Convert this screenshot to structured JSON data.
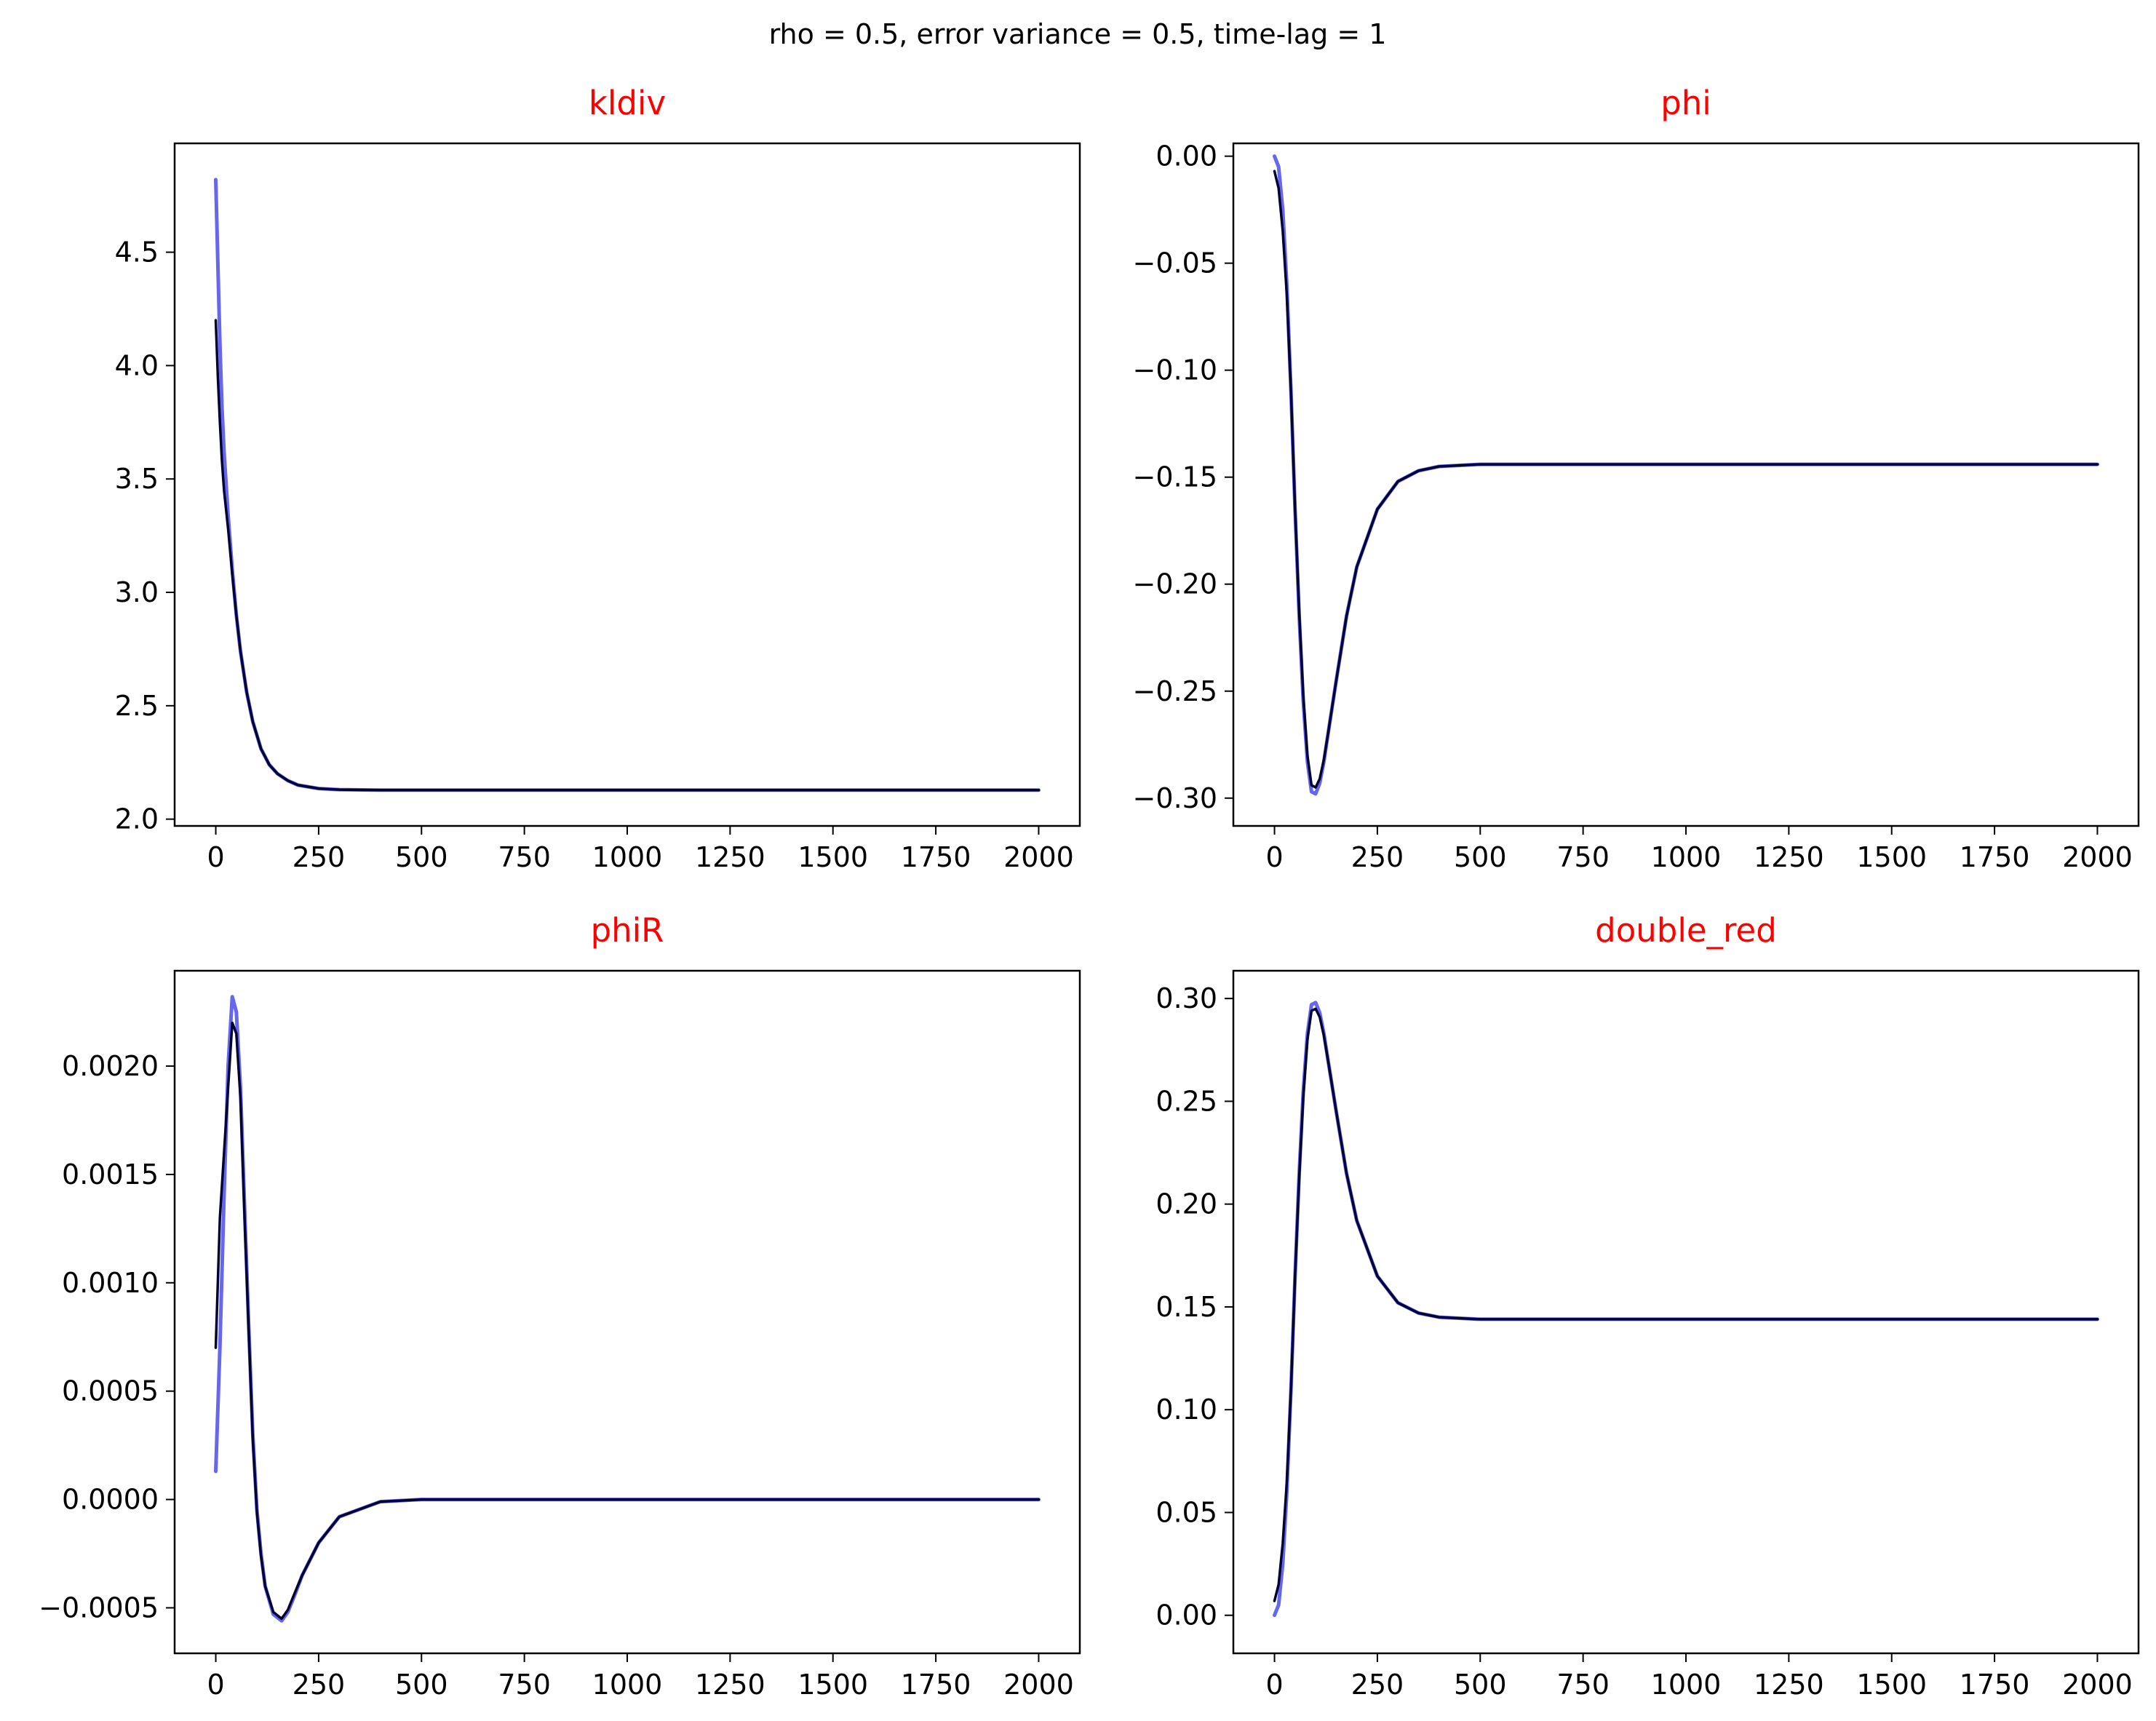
{
  "figure": {
    "suptitle": "rho = 0.5, error variance = 0.5, time-lag = 1",
    "colors": {
      "series_a": "#6666ee",
      "series_b": "#000033",
      "title": "#ff0000",
      "axes": "#000000"
    }
  },
  "chart_data": [
    {
      "type": "line",
      "title": "kldiv",
      "xlim": [
        -100,
        2100
      ],
      "ylim": [
        1.97,
        4.98
      ],
      "xticks": [
        0,
        250,
        500,
        750,
        1000,
        1250,
        1500,
        1750,
        2000
      ],
      "xtick_labels": [
        "0",
        "250",
        "500",
        "750",
        "1000",
        "1250",
        "1500",
        "1750",
        "2000"
      ],
      "yticks": [
        2.0,
        2.5,
        3.0,
        3.5,
        4.0,
        4.5
      ],
      "ytick_labels": [
        "2.0",
        "2.5",
        "3.0",
        "3.5",
        "4.0",
        "4.5"
      ],
      "series": [
        {
          "x": [
            0,
            5,
            10,
            15,
            20,
            30,
            40,
            50,
            60,
            75,
            90,
            110,
            130,
            150,
            175,
            200,
            250,
            300,
            400,
            500,
            750,
            1000,
            1500,
            2000
          ],
          "y": [
            4.82,
            4.45,
            4.1,
            3.82,
            3.62,
            3.34,
            3.1,
            2.9,
            2.74,
            2.56,
            2.43,
            2.31,
            2.24,
            2.2,
            2.17,
            2.15,
            2.135,
            2.13,
            2.128,
            2.128,
            2.128,
            2.128,
            2.128,
            2.128
          ]
        },
        {
          "x": [
            0,
            5,
            10,
            15,
            20,
            30,
            40,
            50,
            60,
            75,
            90,
            110,
            130,
            150,
            175,
            200,
            250,
            300,
            400,
            500,
            750,
            1000,
            1500,
            2000
          ],
          "y": [
            4.2,
            3.95,
            3.75,
            3.58,
            3.45,
            3.28,
            3.08,
            2.9,
            2.74,
            2.56,
            2.43,
            2.31,
            2.24,
            2.2,
            2.17,
            2.15,
            2.135,
            2.13,
            2.128,
            2.128,
            2.128,
            2.128,
            2.128,
            2.128
          ]
        }
      ]
    },
    {
      "type": "line",
      "title": "phi",
      "xlim": [
        -100,
        2100
      ],
      "ylim": [
        -0.313,
        0.006
      ],
      "xticks": [
        0,
        250,
        500,
        750,
        1000,
        1250,
        1500,
        1750,
        2000
      ],
      "xtick_labels": [
        "0",
        "250",
        "500",
        "750",
        "1000",
        "1250",
        "1500",
        "1750",
        "2000"
      ],
      "yticks": [
        0.0,
        -0.05,
        -0.1,
        -0.15,
        -0.2,
        -0.25,
        -0.3
      ],
      "ytick_labels": [
        "0.00",
        "−0.05",
        "−0.10",
        "−0.15",
        "−0.20",
        "−0.25",
        "−0.30"
      ],
      "series": [
        {
          "x": [
            0,
            10,
            20,
            30,
            40,
            50,
            60,
            70,
            80,
            90,
            100,
            110,
            120,
            130,
            150,
            175,
            200,
            250,
            300,
            350,
            400,
            500,
            750,
            1000,
            1500,
            2000
          ],
          "y": [
            0.0,
            -0.005,
            -0.025,
            -0.06,
            -0.11,
            -0.165,
            -0.215,
            -0.255,
            -0.283,
            -0.297,
            -0.298,
            -0.293,
            -0.283,
            -0.27,
            -0.245,
            -0.215,
            -0.192,
            -0.165,
            -0.152,
            -0.147,
            -0.145,
            -0.144,
            -0.144,
            -0.144,
            -0.144,
            -0.144
          ]
        },
        {
          "x": [
            0,
            10,
            20,
            30,
            40,
            50,
            60,
            70,
            80,
            90,
            100,
            110,
            120,
            130,
            150,
            175,
            200,
            250,
            300,
            350,
            400,
            500,
            750,
            1000,
            1500,
            2000
          ],
          "y": [
            -0.007,
            -0.015,
            -0.035,
            -0.065,
            -0.11,
            -0.165,
            -0.213,
            -0.252,
            -0.28,
            -0.294,
            -0.295,
            -0.291,
            -0.282,
            -0.27,
            -0.245,
            -0.215,
            -0.192,
            -0.165,
            -0.152,
            -0.147,
            -0.145,
            -0.144,
            -0.144,
            -0.144,
            -0.144,
            -0.144
          ]
        }
      ]
    },
    {
      "type": "line",
      "title": "phiR",
      "xlim": [
        -100,
        2100
      ],
      "ylim": [
        -0.00071,
        0.00244
      ],
      "xticks": [
        0,
        250,
        500,
        750,
        1000,
        1250,
        1500,
        1750,
        2000
      ],
      "xtick_labels": [
        "0",
        "250",
        "500",
        "750",
        "1000",
        "1250",
        "1500",
        "1750",
        "2000"
      ],
      "yticks": [
        -0.0005,
        0.0,
        0.0005,
        0.001,
        0.0015,
        0.002
      ],
      "ytick_labels": [
        "−0.0005",
        "0.0000",
        "0.0005",
        "0.0010",
        "0.0015",
        "0.0020"
      ],
      "series": [
        {
          "x": [
            0,
            10,
            20,
            30,
            40,
            50,
            60,
            70,
            80,
            90,
            100,
            110,
            120,
            140,
            160,
            175,
            190,
            210,
            250,
            300,
            400,
            500,
            750,
            1000,
            1500,
            2000
          ],
          "y": [
            0.00013,
            0.0007,
            0.0014,
            0.002,
            0.00232,
            0.00225,
            0.0019,
            0.00135,
            0.0008,
            0.0003,
            -5e-05,
            -0.00025,
            -0.0004,
            -0.00053,
            -0.00056,
            -0.00052,
            -0.00045,
            -0.00035,
            -0.0002,
            -8e-05,
            -1e-05,
            0.0,
            0.0,
            0.0,
            0.0,
            0.0
          ]
        },
        {
          "x": [
            0,
            10,
            20,
            30,
            40,
            50,
            60,
            70,
            80,
            90,
            100,
            110,
            120,
            140,
            160,
            175,
            190,
            210,
            250,
            300,
            400,
            500,
            750,
            1000,
            1500,
            2000
          ],
          "y": [
            0.0007,
            0.0013,
            0.0016,
            0.0019,
            0.0022,
            0.00215,
            0.00185,
            0.0013,
            0.00078,
            0.00028,
            -6e-05,
            -0.00026,
            -0.0004,
            -0.00052,
            -0.00055,
            -0.00051,
            -0.00044,
            -0.00035,
            -0.0002,
            -8e-05,
            -1e-05,
            0.0,
            0.0,
            0.0,
            0.0,
            0.0
          ]
        }
      ]
    },
    {
      "type": "line",
      "title": "double_red",
      "xlim": [
        -100,
        2100
      ],
      "ylim": [
        -0.0185,
        0.3135
      ],
      "xticks": [
        0,
        250,
        500,
        750,
        1000,
        1250,
        1500,
        1750,
        2000
      ],
      "xtick_labels": [
        "0",
        "250",
        "500",
        "750",
        "1000",
        "1250",
        "1500",
        "1750",
        "2000"
      ],
      "yticks": [
        0.0,
        0.05,
        0.1,
        0.15,
        0.2,
        0.25,
        0.3
      ],
      "ytick_labels": [
        "0.00",
        "0.05",
        "0.10",
        "0.15",
        "0.20",
        "0.25",
        "0.30"
      ],
      "series": [
        {
          "x": [
            0,
            10,
            20,
            30,
            40,
            50,
            60,
            70,
            80,
            90,
            100,
            110,
            120,
            130,
            150,
            175,
            200,
            250,
            300,
            350,
            400,
            500,
            750,
            1000,
            1500,
            2000
          ],
          "y": [
            0.0,
            0.005,
            0.025,
            0.06,
            0.11,
            0.165,
            0.215,
            0.255,
            0.283,
            0.297,
            0.298,
            0.293,
            0.283,
            0.27,
            0.245,
            0.215,
            0.192,
            0.165,
            0.152,
            0.147,
            0.145,
            0.144,
            0.144,
            0.144,
            0.144,
            0.144
          ]
        },
        {
          "x": [
            0,
            10,
            20,
            30,
            40,
            50,
            60,
            70,
            80,
            90,
            100,
            110,
            120,
            130,
            150,
            175,
            200,
            250,
            300,
            350,
            400,
            500,
            750,
            1000,
            1500,
            2000
          ],
          "y": [
            0.007,
            0.015,
            0.035,
            0.065,
            0.11,
            0.165,
            0.213,
            0.252,
            0.28,
            0.294,
            0.295,
            0.291,
            0.282,
            0.27,
            0.245,
            0.215,
            0.192,
            0.165,
            0.152,
            0.147,
            0.145,
            0.144,
            0.144,
            0.144,
            0.144,
            0.144
          ]
        }
      ]
    }
  ]
}
